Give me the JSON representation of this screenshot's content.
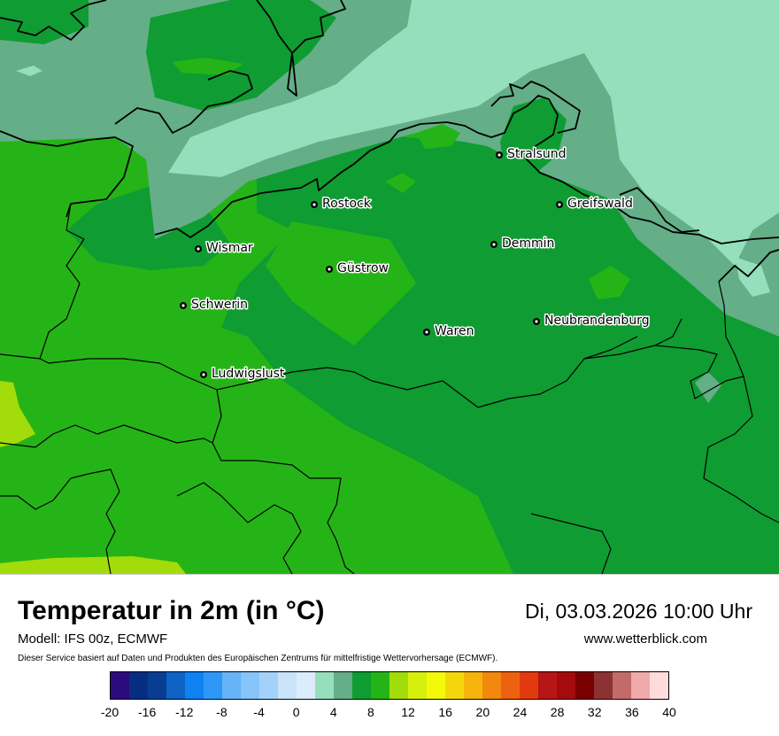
{
  "map": {
    "cities": [
      {
        "name": "Stralsund"
      },
      {
        "name": "Rostock"
      },
      {
        "name": "Greifswald"
      },
      {
        "name": "Wismar"
      },
      {
        "name": "Demmin"
      },
      {
        "name": "Güstrow"
      },
      {
        "name": "Schwerin"
      },
      {
        "name": "Neubrandenburg"
      },
      {
        "name": "Waren"
      },
      {
        "name": "Ludwigslust"
      }
    ],
    "colors": {
      "sea_light": "#96dfbc",
      "teal": "#64ae88",
      "green_dark": "#0f9c32",
      "green_mid": "#25b417",
      "green_yellow": "#a2dc0b",
      "border": "#000000"
    }
  },
  "footer": {
    "title": "Temperatur in 2m (in °C)",
    "datetime": "Di, 03.03.2026 10:00 Uhr",
    "model": "Modell: IFS 00z, ECMWF",
    "website": "www.wetterblick.com",
    "disclaimer": "Dieser Service basiert auf Daten und Produkten des Europäischen Zentrums für mittelfristige Wettervorhersage (ECMWF)."
  },
  "legend": {
    "colors": [
      "#2c0c7c",
      "#062e80",
      "#083e92",
      "#0d62c4",
      "#0e82f0",
      "#2e98f8",
      "#67b3f7",
      "#87c4f9",
      "#a4d1f9",
      "#c8e3fa",
      "#dcecfc",
      "#96dfbc",
      "#64ae88",
      "#0f9c32",
      "#25b417",
      "#a2dc0b",
      "#d6f00b",
      "#f4f90a",
      "#f5d60c",
      "#f4b40c",
      "#f2880e",
      "#ee6110",
      "#e23a0f",
      "#b61616",
      "#a40b0c",
      "#7a0000",
      "#8c3232",
      "#c26b6b",
      "#f0aaaa",
      "#ffdcdc"
    ],
    "labels": [
      "-20",
      "-16",
      "-12",
      "-8",
      "-4",
      "0",
      "4",
      "8",
      "12",
      "16",
      "20",
      "24",
      "28",
      "32",
      "36",
      "40"
    ]
  }
}
